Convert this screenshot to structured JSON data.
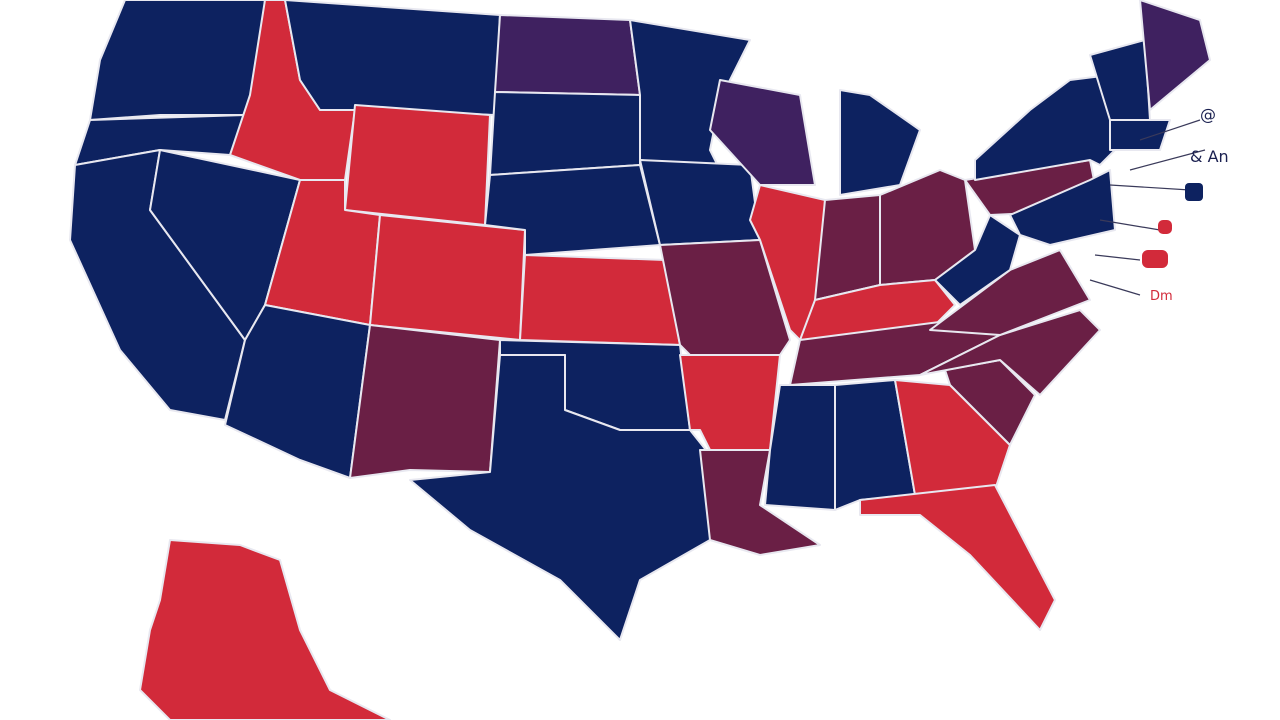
{
  "labels": [
    "@",
    "& An",
    "Dm"
  ]
}
